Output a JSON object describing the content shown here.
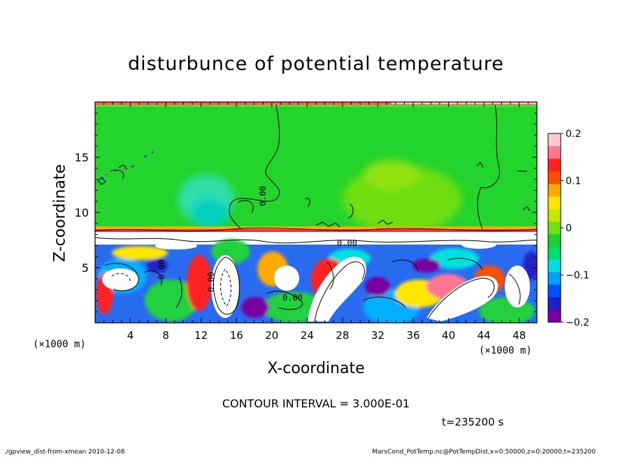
{
  "chart_data": {
    "type": "heatmap",
    "title": "disturbunce of potential temperature",
    "xlabel": "X-coordinate",
    "ylabel": "Z-coordinate",
    "x_unit": "(×1000 m)",
    "y_unit": "(×1000 m)",
    "xlim": [
      0,
      50
    ],
    "ylim": [
      0,
      20
    ],
    "x_ticks": [
      4,
      8,
      12,
      16,
      20,
      24,
      28,
      32,
      36,
      40,
      44,
      48
    ],
    "y_ticks": [
      5,
      10,
      15
    ],
    "colorbar": {
      "vmin": -0.2,
      "vmax": 0.2,
      "tick_values": [
        0.2,
        0.1,
        0,
        -0.1,
        -0.2
      ],
      "tick_labels": [
        "0.2",
        "0.1",
        "0",
        "−0.1",
        "−0.2"
      ],
      "colors": [
        "#7800a0",
        "#2020c8",
        "#0050ff",
        "#00a0ff",
        "#00e0e0",
        "#00dc6e",
        "#20d030",
        "#70e010",
        "#c8e600",
        "#ffe600",
        "#ffaa00",
        "#ff5000",
        "#ff2020",
        "#ff7890",
        "#ffc8d2"
      ]
    },
    "contour_labels": [
      "0.00",
      "0.00",
      "0.00",
      "0.00",
      "0.00"
    ],
    "contour_interval": "CONTOUR INTERVAL = 3.000E-01",
    "time_label": "t=235200 s",
    "footer_left": "./gpview_dist-from-xmean  2010-12-08",
    "footer_right": "MarsCond_PotTemp.nc@PotTempDist,x=0:50000,z=0:20000,t=235200"
  }
}
